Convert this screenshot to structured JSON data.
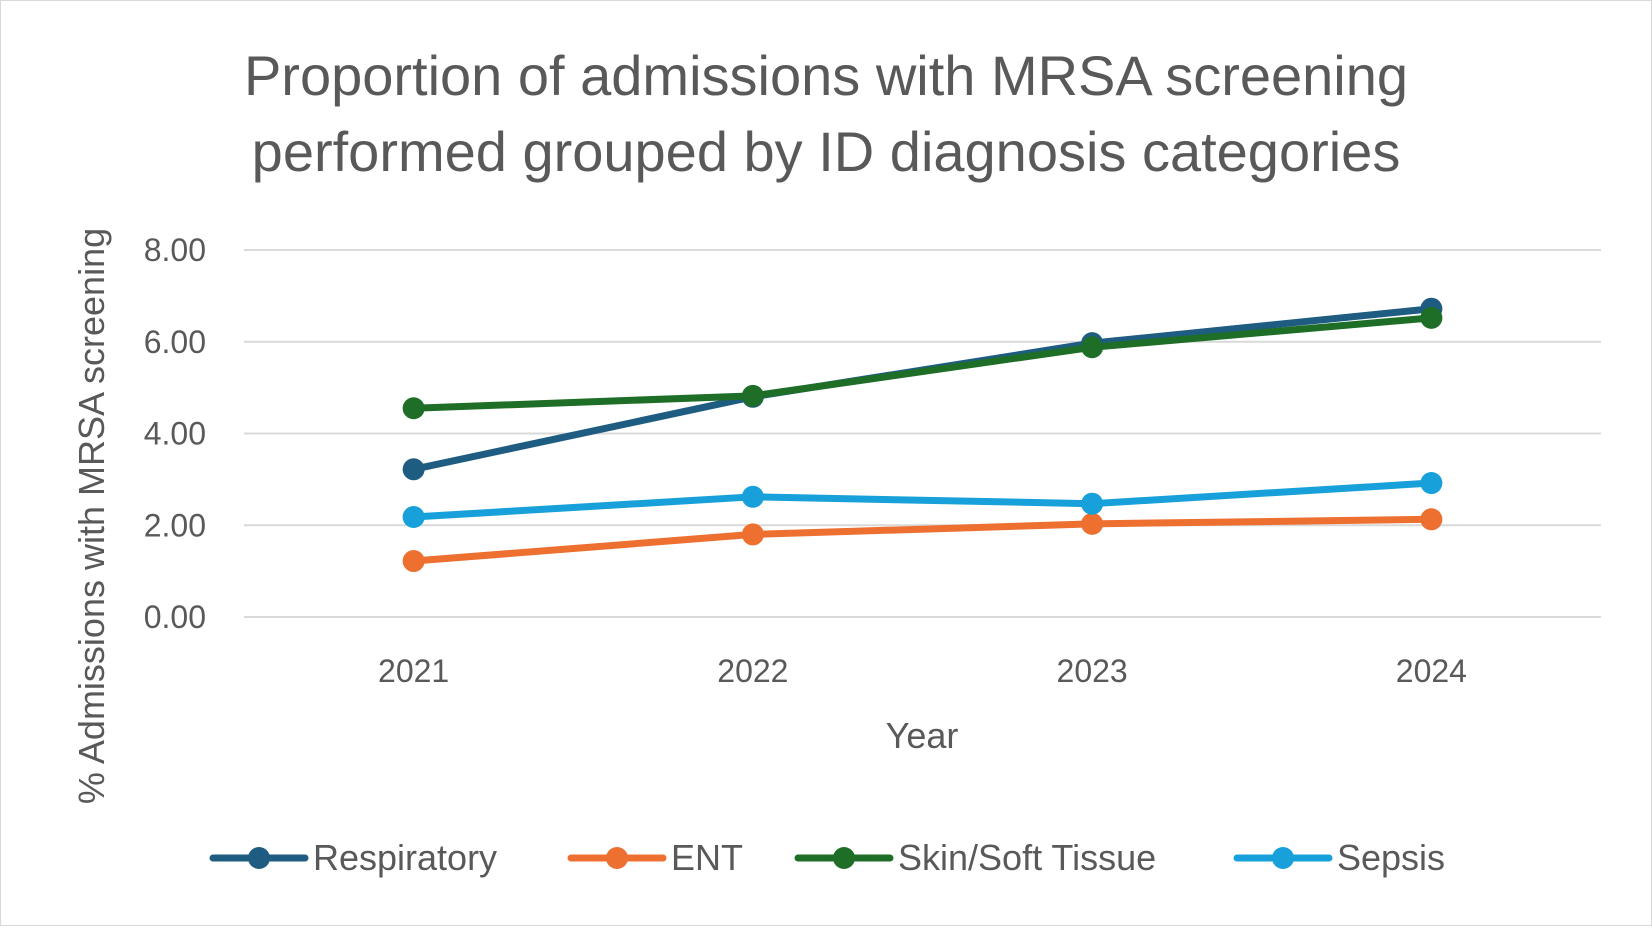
{
  "chart_data": {
    "type": "line",
    "title": [
      "Proportion of admissions with MRSA screening",
      "performed grouped by ID diagnosis categories"
    ],
    "xlabel": "Year",
    "ylabel": "% Admissions with MRSA screening",
    "categories": [
      "2021",
      "2022",
      "2023",
      "2024"
    ],
    "ylim": [
      0,
      8
    ],
    "yticks": [
      "0.00",
      "2.00",
      "4.00",
      "6.00",
      "8.00"
    ],
    "grid": true,
    "legend_position": "bottom",
    "series": [
      {
        "name": "Respiratory",
        "color": "#1f5c82",
        "values": [
          3.22,
          4.8,
          5.97,
          6.72
        ]
      },
      {
        "name": "ENT",
        "color": "#ed7031",
        "values": [
          1.22,
          1.8,
          2.03,
          2.13
        ]
      },
      {
        "name": "Skin/Soft Tissue",
        "color": "#1e6e27",
        "values": [
          4.55,
          4.82,
          5.88,
          6.52
        ]
      },
      {
        "name": "Sepsis",
        "color": "#17a0d9",
        "values": [
          2.18,
          2.62,
          2.47,
          2.92
        ]
      }
    ]
  }
}
